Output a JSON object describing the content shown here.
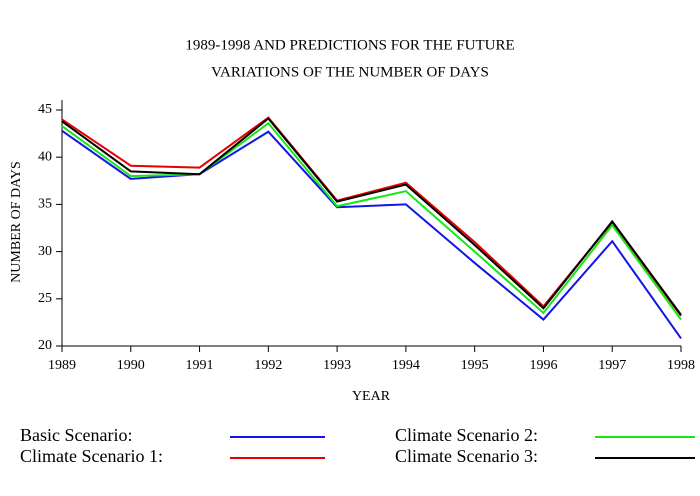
{
  "chart_data": {
    "type": "line",
    "title": "1989-1998 AND PREDICTIONS FOR THE FUTURE",
    "subtitle": "VARIATIONS OF THE NUMBER OF DAYS",
    "x_label": "YEAR",
    "y_label": "NUMBER OF DAYS",
    "x": [
      1989,
      1990,
      1991,
      1992,
      1993,
      1994,
      1995,
      1996,
      1997,
      1998
    ],
    "xlim": [
      1989,
      1998
    ],
    "xticks": [
      1989,
      1990,
      1991,
      1992,
      1993,
      1994,
      1995,
      1996,
      1997,
      1998
    ],
    "ylim": [
      20,
      45
    ],
    "yticks": [
      20,
      25,
      30,
      35,
      40,
      45
    ],
    "grid": false,
    "series": [
      {
        "name": "Basic Scenario:",
        "color": "#1414e6",
        "values": [
          42.8,
          37.7,
          38.2,
          42.7,
          34.7,
          35.0,
          28.8,
          22.8,
          31.1,
          20.8
        ]
      },
      {
        "name": "Climate Scenario 1:",
        "color": "#e60000",
        "values": [
          44.0,
          39.1,
          38.9,
          44.2,
          35.4,
          37.3,
          31.0,
          24.2,
          33.1,
          23.2
        ]
      },
      {
        "name": "Climate Scenario 2:",
        "color": "#14e614",
        "values": [
          43.3,
          38.0,
          38.2,
          43.6,
          34.8,
          36.4,
          30.0,
          23.5,
          32.8,
          22.8
        ]
      },
      {
        "name": "Climate Scenario 3:",
        "color": "#000000",
        "values": [
          43.8,
          38.5,
          38.2,
          44.1,
          35.3,
          37.1,
          30.7,
          24.0,
          33.2,
          23.3
        ]
      }
    ]
  }
}
